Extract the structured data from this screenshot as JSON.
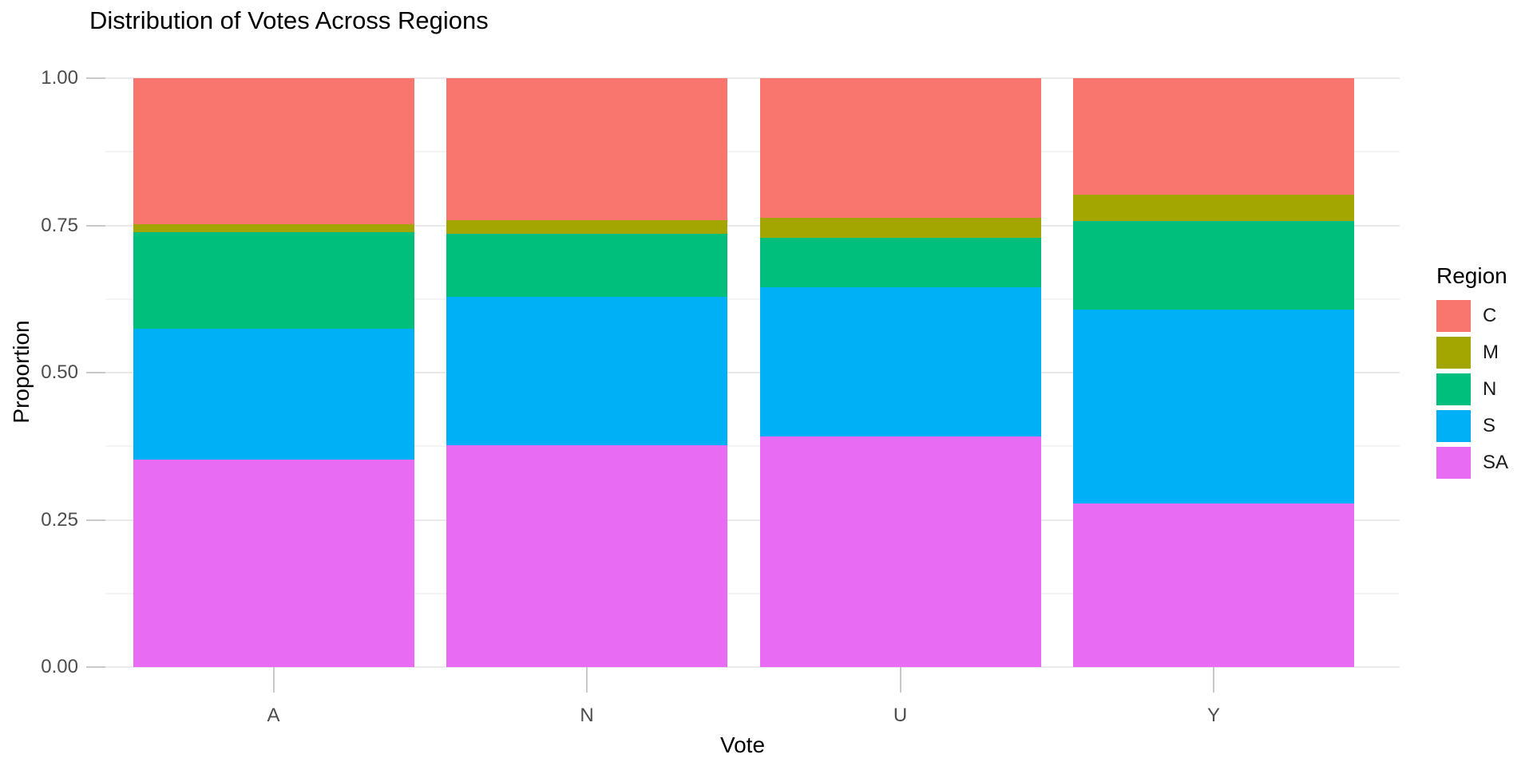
{
  "chart_data": {
    "type": "bar",
    "stacked": true,
    "normalized": true,
    "title": "Distribution of Votes Across Regions",
    "xlabel": "Vote",
    "ylabel": "Proportion",
    "categories": [
      "A",
      "N",
      "U",
      "Y"
    ],
    "series": [
      {
        "name": "C",
        "color": "#F8766D",
        "values": [
          0.248,
          0.241,
          0.237,
          0.198
        ]
      },
      {
        "name": "M",
        "color": "#A3A500",
        "values": [
          0.014,
          0.023,
          0.034,
          0.045
        ]
      },
      {
        "name": "N",
        "color": "#00BF7D",
        "values": [
          0.164,
          0.107,
          0.084,
          0.15
        ]
      },
      {
        "name": "S",
        "color": "#00B0F6",
        "values": [
          0.222,
          0.252,
          0.253,
          0.329
        ]
      },
      {
        "name": "SA",
        "color": "#E76BF3",
        "values": [
          0.352,
          0.377,
          0.392,
          0.278
        ]
      }
    ],
    "ylim": [
      0,
      1
    ],
    "y_ticks": [
      "0.00",
      "0.25",
      "0.50",
      "0.75",
      "1.00"
    ],
    "y_tick_values": [
      0,
      0.25,
      0.5,
      0.75,
      1
    ],
    "y_minor_values": [
      0.125,
      0.375,
      0.625,
      0.875
    ],
    "grid": true,
    "legend_title": "Region",
    "legend_position": "right"
  }
}
